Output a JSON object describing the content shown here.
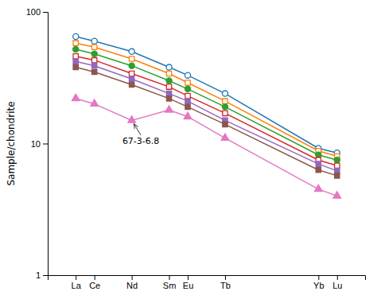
{
  "chart_data": {
    "type": "line",
    "log": "y",
    "y_label": "Sample/chondrite",
    "x": [
      57,
      58,
      60,
      62,
      63,
      65,
      70,
      71
    ],
    "xlim": [
      55.5,
      72.5
    ],
    "xticks": [
      {
        "value": 57,
        "label": "La"
      },
      {
        "value": 58,
        "label": "Ce"
      },
      {
        "value": 60,
        "label": "Nd"
      },
      {
        "value": 62,
        "label": "Sm"
      },
      {
        "value": 63,
        "label": "Eu"
      },
      {
        "value": 65,
        "label": "Tb"
      },
      {
        "value": 70,
        "label": "Yb"
      },
      {
        "value": 71,
        "label": "Lu"
      }
    ],
    "ylim": [
      1,
      100
    ],
    "yticks": [
      1,
      10,
      100
    ],
    "series": [
      {
        "marker": "circle-open",
        "values": [
          65,
          60,
          50,
          38,
          33,
          24,
          9.2,
          8.5
        ]
      },
      {
        "marker": "square-open",
        "values": [
          58,
          54,
          44,
          34,
          29,
          21,
          8.8,
          8.0
        ]
      },
      {
        "marker": "circle",
        "values": [
          52,
          48,
          39,
          30,
          26,
          19,
          8.2,
          7.5
        ]
      },
      {
        "marker": "square-open",
        "values": [
          46,
          43,
          34,
          27,
          23,
          17,
          7.5,
          6.8
        ]
      },
      {
        "marker": "square",
        "values": [
          42,
          39,
          31,
          24,
          21,
          15,
          7.0,
          6.2
        ]
      },
      {
        "marker": "square",
        "values": [
          38,
          35,
          28,
          22,
          19,
          14,
          6.3,
          5.7
        ]
      },
      {
        "marker": "triangle",
        "values": [
          22,
          20,
          15,
          18,
          16,
          11,
          4.5,
          4.0
        ]
      }
    ],
    "annotations": [
      {
        "text": "67-3-6.8",
        "x": 60,
        "y": 15,
        "text_x": 59.5,
        "text_y": 10.5
      }
    ]
  }
}
